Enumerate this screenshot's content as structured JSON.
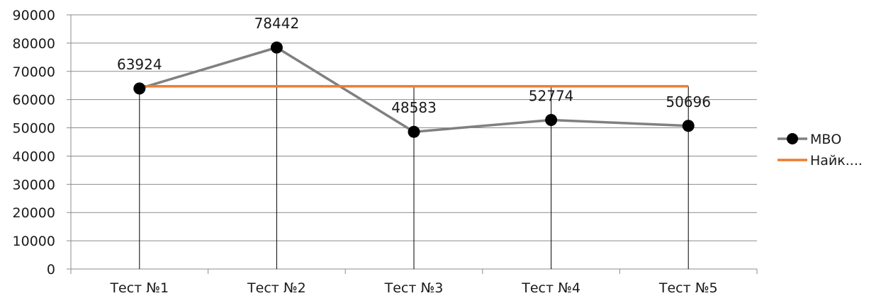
{
  "chart_data": {
    "type": "line",
    "categories": [
      "Тест №1",
      "Тест №2",
      "Тест №3",
      "Тест №4",
      "Тест №5"
    ],
    "ylim": [
      0,
      90000
    ],
    "yticks": [
      0,
      10000,
      20000,
      30000,
      40000,
      50000,
      60000,
      70000,
      80000,
      90000
    ],
    "grid": true,
    "legend_position": "right",
    "drop_lines": true,
    "series": [
      {
        "name": "МВО",
        "values": [
          63924,
          78442,
          48583,
          52774,
          50696
        ],
        "color": "#808080",
        "marker": "circle",
        "marker_color": "#000000",
        "data_labels": [
          "63924",
          "78442",
          "48583",
          "52774",
          "50696"
        ]
      },
      {
        "name": "Найк....",
        "values": [
          64700,
          64700,
          64700,
          64700,
          64700
        ],
        "color": "#ED7D31",
        "marker": "none"
      }
    ]
  }
}
